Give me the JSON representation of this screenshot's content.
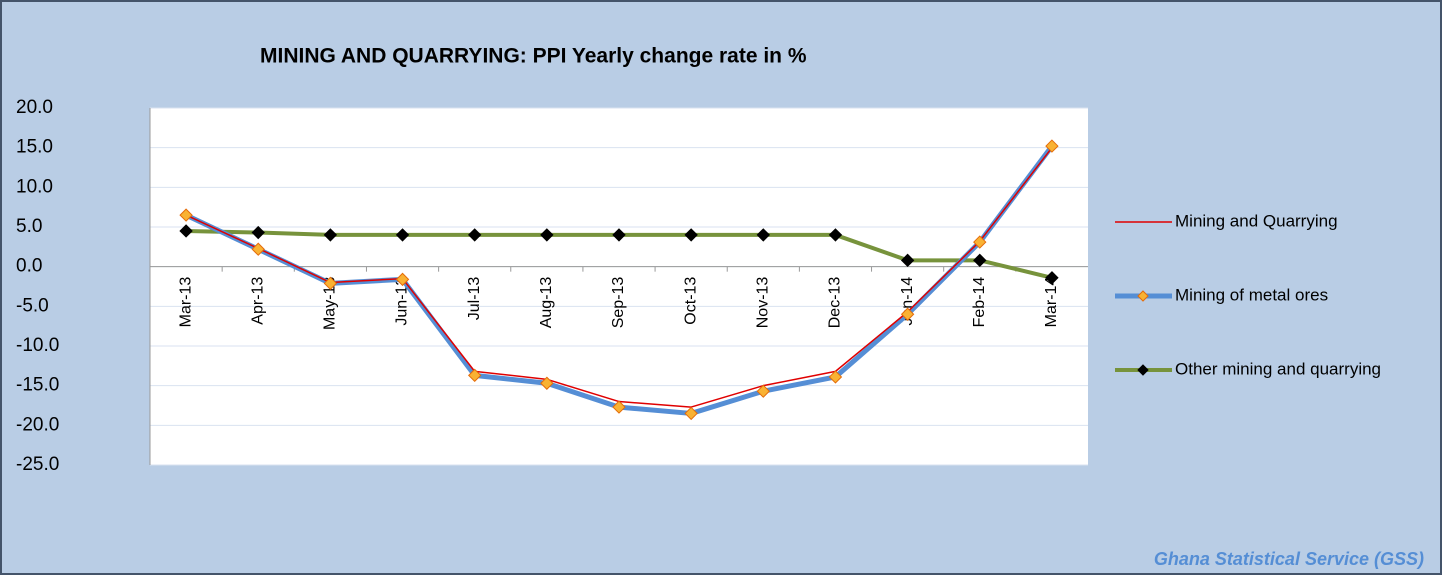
{
  "chart_data": {
    "type": "line",
    "title": "MINING AND QUARRYING:  PPI  Yearly change rate  in %",
    "source": "Ghana Statistical Service (GSS)",
    "categories": [
      "Mar-13",
      "Apr-13",
      "May-13",
      "Jun-13",
      "Jul-13",
      "Aug-13",
      "Sep-13",
      "Oct-13",
      "Nov-13",
      "Dec-13",
      "Jan-14",
      "Feb-14",
      "Mar-14"
    ],
    "series": [
      {
        "name": "Mining and Quarrying",
        "color": "#e00000",
        "values": [
          6.5,
          2.3,
          -2.0,
          -1.5,
          -13.2,
          -14.2,
          -17.0,
          -17.7,
          -15.0,
          -13.2,
          -5.7,
          3.2,
          15.0
        ]
      },
      {
        "name": "Mining of metal ores",
        "color": "#558ed5",
        "marker_color": "#f9b233",
        "values": [
          6.5,
          2.2,
          -2.1,
          -1.6,
          -13.7,
          -14.7,
          -17.7,
          -18.5,
          -15.7,
          -13.9,
          -6.0,
          3.1,
          15.2
        ]
      },
      {
        "name": "Other mining and quarrying",
        "color": "#77933c",
        "marker_color": "#000000",
        "values": [
          4.5,
          4.3,
          4.0,
          4.0,
          4.0,
          4.0,
          4.0,
          4.0,
          4.0,
          4.0,
          0.8,
          0.8,
          -1.4
        ]
      }
    ],
    "ylim": [
      -25,
      20
    ],
    "yticks": [
      {
        "value": 20,
        "label": "20.0"
      },
      {
        "value": 15,
        "label": "15.0"
      },
      {
        "value": 10,
        "label": "10.0"
      },
      {
        "value": 5,
        "label": "5.0"
      },
      {
        "value": 0,
        "label": "0.0"
      },
      {
        "value": -5,
        "label": "-5.0"
      },
      {
        "value": -10,
        "label": "-10.0"
      },
      {
        "value": -15,
        "label": "-15.0"
      },
      {
        "value": -20,
        "label": "-20.0"
      },
      {
        "value": -25,
        "label": "-25.0"
      }
    ],
    "grid": true,
    "legend": "right"
  }
}
